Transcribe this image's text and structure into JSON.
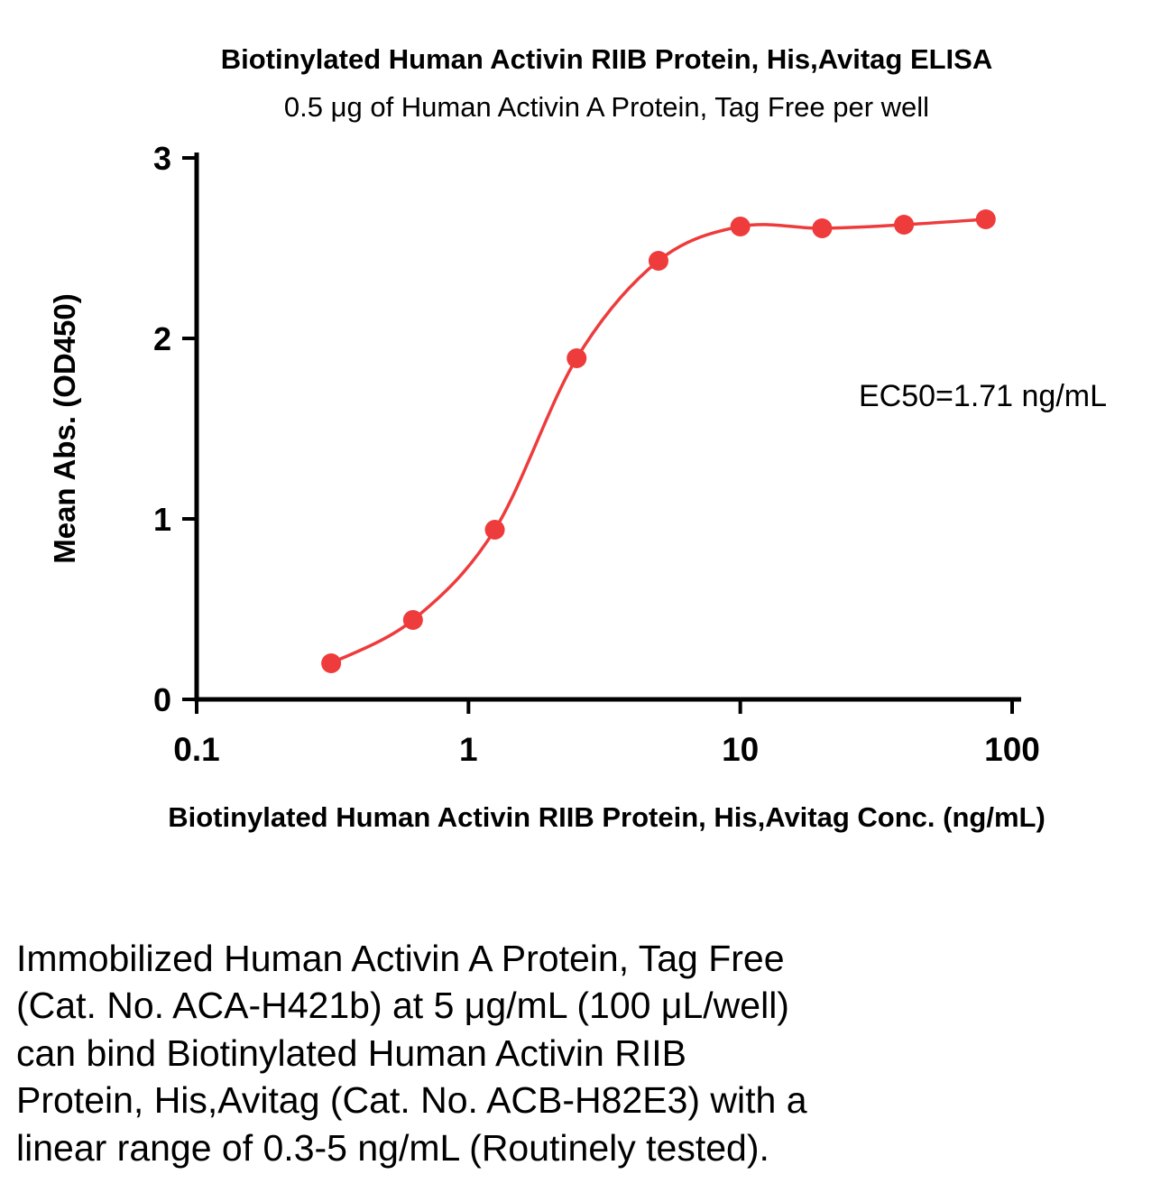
{
  "chart_data": {
    "type": "scatter",
    "title": "Biotinylated Human Activin RIIB Protein, His,Avitag ELISA",
    "subtitle": "0.5 μg of Human Activin A Protein, Tag Free per well",
    "xlabel": "Biotinylated Human Activin RIIB Protein, His,Avitag Conc. (ng/mL)",
    "ylabel": "Mean Abs. (OD450)",
    "annotation": "EC50=1.71 ng/mL",
    "ec50": 1.71,
    "ec50_units": "ng/mL",
    "xscale": "log",
    "xlim": [
      0.1,
      100
    ],
    "ylim": [
      0,
      3
    ],
    "x": [
      0.3125,
      0.625,
      1.25,
      2.5,
      5,
      10,
      20,
      40,
      80
    ],
    "y": [
      0.2,
      0.44,
      0.94,
      1.89,
      2.43,
      2.62,
      2.61,
      2.63,
      2.66
    ],
    "xticks": [
      {
        "value": 0.1,
        "label": "0.1"
      },
      {
        "value": 1,
        "label": "1"
      },
      {
        "value": 10,
        "label": "10"
      },
      {
        "value": 100,
        "label": "100"
      }
    ],
    "yticks": [
      {
        "value": 0,
        "label": "0"
      },
      {
        "value": 1,
        "label": "1"
      },
      {
        "value": 2,
        "label": "2"
      },
      {
        "value": 3,
        "label": "3"
      }
    ],
    "curve_color": "#ee3b3c",
    "point_color": "#ee3b3c",
    "curve_fit": "4PL sigmoidal",
    "grid": false,
    "legend_position": "none"
  },
  "caption": {
    "lines": [
      "Immobilized Human Activin A Protein, Tag Free",
      "(Cat. No. ACA-H421b) at 5 μg/mL (100 μL/well)",
      "can bind Biotinylated Human Activin RIIB",
      "Protein, His,Avitag (Cat. No. ACB-H82E3) with a",
      "linear range of 0.3-5 ng/mL (Routinely tested)."
    ]
  }
}
